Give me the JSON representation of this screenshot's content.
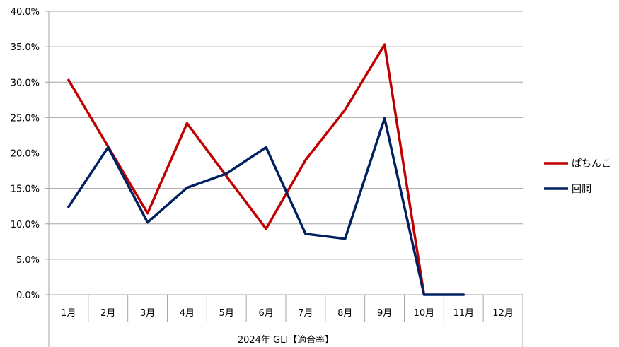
{
  "chart_data": {
    "type": "line",
    "categories": [
      "1月",
      "2月",
      "3月",
      "4月",
      "5月",
      "6月",
      "7月",
      "8月",
      "9月",
      "10月",
      "11月",
      "12月"
    ],
    "series": [
      {
        "name": "ぱちんこ",
        "color": "#C00000",
        "values": [
          30.3,
          20.9,
          11.5,
          24.2,
          16.7,
          9.3,
          19.0,
          26.1,
          35.3,
          0.0,
          null,
          null
        ]
      },
      {
        "name": "回胴",
        "color": "#002060",
        "values": [
          12.4,
          20.8,
          10.2,
          15.1,
          17.1,
          20.8,
          8.6,
          7.9,
          24.9,
          0.0,
          0.0,
          null
        ]
      }
    ],
    "y_ticks": [
      "0.0%",
      "5.0%",
      "10.0%",
      "15.0%",
      "20.0%",
      "25.0%",
      "30.0%",
      "35.0%",
      "40.0%"
    ],
    "ylim": [
      0,
      40
    ],
    "xlabel": "2024年 GLI【適合率】",
    "legend_position": "right",
    "grid": true
  }
}
